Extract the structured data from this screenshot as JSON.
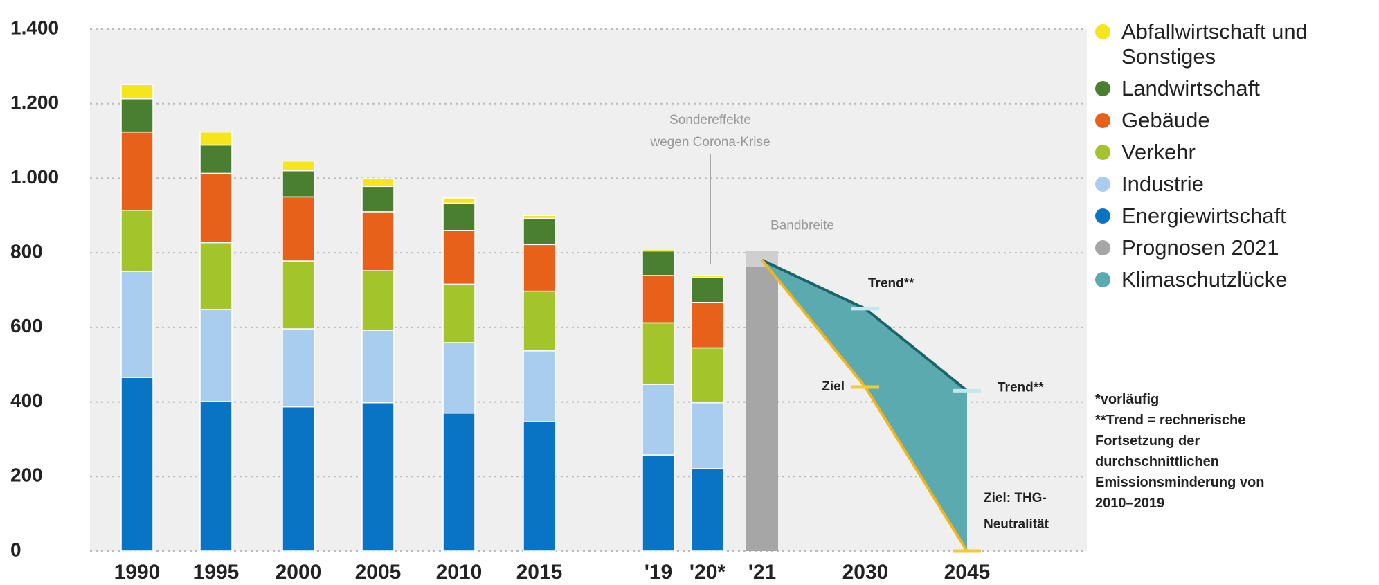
{
  "chart_data": {
    "type": "stacked_bar",
    "categories": [
      "1990",
      "1995",
      "2000",
      "2005",
      "2010",
      "2015",
      "'19",
      "'20*",
      "'21",
      "2030",
      "2045"
    ],
    "series": [
      {
        "name": "Energiewirtschaft",
        "color": "#0a74c4",
        "values": [
          466,
          401,
          387,
          398,
          370,
          347,
          258,
          221,
          null,
          null,
          null
        ]
      },
      {
        "name": "Industrie",
        "color": "#a9cdef",
        "values": [
          284,
          247,
          209,
          194,
          189,
          190,
          189,
          177,
          null,
          null,
          null
        ]
      },
      {
        "name": "Verkehr",
        "color": "#a3c42a",
        "values": [
          164,
          179,
          182,
          160,
          157,
          160,
          165,
          147,
          null,
          null,
          null
        ]
      },
      {
        "name": "Gebäude",
        "color": "#e8611a",
        "values": [
          210,
          186,
          172,
          158,
          144,
          125,
          127,
          122,
          null,
          null,
          null
        ]
      },
      {
        "name": "Landwirtschaft",
        "color": "#4a7f32",
        "values": [
          89,
          76,
          70,
          68,
          73,
          70,
          66,
          67,
          null,
          null,
          null
        ]
      },
      {
        "name": "Abfallwirtschaft und Sonstiges",
        "color": "#f5e51b",
        "values": [
          38,
          35,
          26,
          21,
          14,
          8,
          5,
          5,
          null,
          null,
          null
        ]
      }
    ],
    "prognose": {
      "name": "Prognosen 2021",
      "color": "#a6a6a6",
      "values": [
        null,
        null,
        null,
        null,
        null,
        null,
        null,
        null,
        762,
        null,
        null
      ]
    },
    "bandbreite": {
      "label": "Bandbreite",
      "range": [
        762,
        805
      ]
    },
    "gap": {
      "name": "Klimaschutzlücke",
      "color": "#5aaab0"
    },
    "trend": [
      null,
      null,
      null,
      null,
      null,
      null,
      null,
      null,
      780,
      650,
      430
    ],
    "ziel": [
      null,
      null,
      null,
      null,
      null,
      null,
      null,
      null,
      780,
      440,
      0
    ],
    "trend_label": "Trend**",
    "ziel_label": "Ziel",
    "ziel_end_label": [
      "Ziel: THG-",
      "Neutralität"
    ],
    "corona_note": [
      "Sondereffekte",
      "wegen Corona-Krise"
    ],
    "notes": [
      "*vorläufig",
      "**Trend = rechnerische Fortsetzung der durchschnittlichen Emissionsminderung von 2010–2019"
    ],
    "ylim": [
      0,
      1400
    ],
    "yticks": [
      0,
      200,
      400,
      600,
      800,
      {
        "value": 1000,
        "label": "1.000"
      },
      {
        "value": 1200,
        "label": "1.200"
      },
      {
        "value": 1400,
        "label": "1.400"
      }
    ],
    "grid": true
  }
}
